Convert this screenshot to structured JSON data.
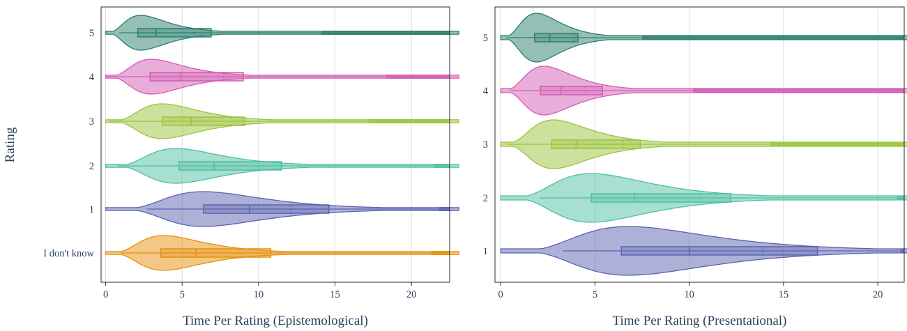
{
  "ylabel": "Rating",
  "chart_data": [
    {
      "type": "violin",
      "xlabel": "Time Per Rating (Epistemological)",
      "xlim": [
        -0.3,
        22.5
      ],
      "xticks": [
        0,
        5,
        10,
        15,
        20
      ],
      "grid": "vertical",
      "categories": [
        "I don't know",
        "1",
        "2",
        "3",
        "4",
        "5"
      ],
      "series": [
        {
          "category": "I don't know",
          "color": "#e8900c",
          "q1": 3.6,
          "median": 5.9,
          "mean": 8.7,
          "q3": 10.8,
          "whisker_low": 1.0,
          "whisker_high": 21.3,
          "mode": 3.8
        },
        {
          "category": "1",
          "color": "#5b63b0",
          "q1": 6.4,
          "median": 9.4,
          "mean": 12.1,
          "q3": 14.6,
          "whisker_low": 2.7,
          "whisker_high": 21.8,
          "mode": 6.4
        },
        {
          "category": "2",
          "color": "#4fbfa4",
          "q1": 4.8,
          "median": 7.1,
          "mean": 10.0,
          "q3": 11.5,
          "whisker_low": 0.8,
          "whisker_high": 21.5,
          "mode": 4.6
        },
        {
          "category": "3",
          "color": "#9ac43c",
          "q1": 3.7,
          "median": 5.6,
          "mean": 8.2,
          "q3": 9.1,
          "whisker_low": 0.2,
          "whisker_high": 17.2,
          "mode": 3.7
        },
        {
          "category": "4",
          "color": "#d35bb3",
          "q1": 2.9,
          "median": 4.9,
          "mean": 7.7,
          "q3": 9.0,
          "whisker_low": 0.0,
          "whisker_high": 18.3,
          "mode": 3.0
        },
        {
          "category": "5",
          "color": "#2b7f6d",
          "q1": 2.1,
          "median": 3.3,
          "mean": 5.8,
          "q3": 6.9,
          "whisker_low": 0.9,
          "whisker_high": 14.1,
          "mode": 2.3
        }
      ]
    },
    {
      "type": "violin",
      "xlabel": "Time Per Rating (Presentational)",
      "xlim": [
        -0.3,
        21.4
      ],
      "xticks": [
        0,
        5,
        10,
        15,
        20
      ],
      "grid": "vertical",
      "categories": [
        "1",
        "2",
        "3",
        "4",
        "5"
      ],
      "series": [
        {
          "category": "1",
          "color": "#5b63b0",
          "q1": 6.4,
          "median": 10.0,
          "mean": 13.9,
          "q3": 16.8,
          "whisker_low": 3.3,
          "whisker_high": 21.2,
          "mode": 6.8
        },
        {
          "category": "2",
          "color": "#4fbfa4",
          "q1": 4.8,
          "median": 7.1,
          "mean": 10.6,
          "q3": 12.2,
          "whisker_low": 2.1,
          "whisker_high": 21.0,
          "mode": 4.8
        },
        {
          "category": "3",
          "color": "#9ac43c",
          "q1": 2.7,
          "median": 4.0,
          "mean": 6.5,
          "q3": 7.4,
          "whisker_low": 0.3,
          "whisker_high": 14.3,
          "mode": 2.8
        },
        {
          "category": "4",
          "color": "#d35bb3",
          "q1": 2.1,
          "median": 3.2,
          "mean": 4.5,
          "q3": 5.4,
          "whisker_low": 0.5,
          "whisker_high": 10.2,
          "mode": 2.3
        },
        {
          "category": "5",
          "color": "#2b7f6d",
          "q1": 1.8,
          "median": 2.6,
          "mean": 3.9,
          "q3": 4.1,
          "whisker_low": 0.3,
          "whisker_high": 7.5,
          "mode": 1.9
        }
      ]
    }
  ]
}
